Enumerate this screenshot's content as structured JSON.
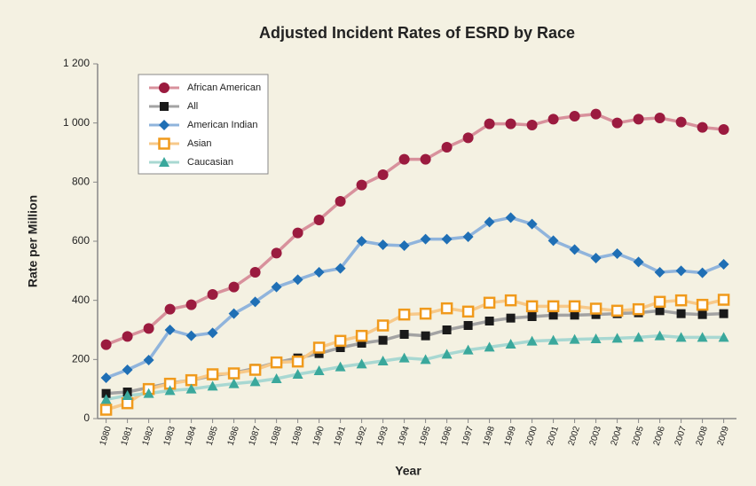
{
  "chart_data": {
    "type": "line",
    "title": "Adjusted Incident Rates of ESRD by Race",
    "x_label": "Year",
    "y_label": "Rate per Million",
    "x": [
      1980,
      1981,
      1982,
      1983,
      1984,
      1985,
      1986,
      1987,
      1988,
      1989,
      1990,
      1991,
      1992,
      1993,
      1994,
      1995,
      1996,
      1997,
      1998,
      1999,
      2000,
      2001,
      2002,
      2003,
      2004,
      2005,
      2006,
      2007,
      2008,
      2009
    ],
    "xlim": [
      1979.6,
      2009.6
    ],
    "xticks": [
      1980,
      1981,
      1982,
      1983,
      1984,
      1985,
      1986,
      1987,
      1988,
      1989,
      1990,
      1991,
      1992,
      1993,
      1994,
      1995,
      1996,
      1997,
      1998,
      1999,
      2000,
      2001,
      2002,
      2003,
      2004,
      2005,
      2006,
      2007,
      2008,
      2009
    ],
    "ylim": [
      0,
      1200
    ],
    "yticks": [
      0,
      200,
      400,
      600,
      800,
      {
        "value": 1000,
        "label": "1 000"
      },
      {
        "value": 1200,
        "label": "1 200"
      }
    ],
    "grid": false,
    "legend": "upper left",
    "series": [
      {
        "name": "African American",
        "color": "#9b1b3f",
        "line_color": "#d8919c",
        "marker": "circle",
        "values": [
          250,
          278,
          305,
          370,
          385,
          420,
          445,
          495,
          560,
          628,
          672,
          735,
          790,
          825,
          877,
          877,
          918,
          950,
          997,
          997,
          993,
          1013,
          1023,
          1030,
          1000,
          1013,
          1017,
          1003,
          985,
          978
        ]
      },
      {
        "name": "All",
        "color": "#1a1a1a",
        "line_color": "#a3a3a3",
        "marker": "square",
        "values": [
          85,
          90,
          105,
          120,
          130,
          145,
          155,
          170,
          190,
          205,
          220,
          240,
          255,
          265,
          285,
          280,
          300,
          315,
          330,
          340,
          345,
          350,
          350,
          352,
          355,
          358,
          365,
          355,
          352,
          355
        ]
      },
      {
        "name": "American Indian",
        "color": "#1f6fb5",
        "line_color": "#90b4dc",
        "marker": "diamond",
        "values": [
          138,
          165,
          198,
          300,
          280,
          290,
          355,
          395,
          445,
          470,
          495,
          508,
          600,
          588,
          585,
          607,
          607,
          615,
          665,
          680,
          658,
          602,
          572,
          543,
          558,
          530,
          495,
          500,
          493,
          522
        ]
      },
      {
        "name": "Asian",
        "color": "#f09a1c",
        "line_color": "#f7c98a",
        "marker": "open-square",
        "values": [
          30,
          52,
          100,
          118,
          130,
          150,
          153,
          165,
          190,
          193,
          240,
          263,
          280,
          315,
          352,
          355,
          373,
          362,
          392,
          400,
          380,
          380,
          380,
          372,
          365,
          370,
          395,
          400,
          385,
          402
        ]
      },
      {
        "name": "Caucasian",
        "color": "#3aa89c",
        "line_color": "#a8d8d2",
        "marker": "triangle",
        "values": [
          65,
          78,
          85,
          95,
          100,
          110,
          118,
          125,
          135,
          150,
          162,
          175,
          185,
          195,
          205,
          200,
          218,
          232,
          242,
          252,
          262,
          265,
          268,
          270,
          272,
          275,
          280,
          275,
          275,
          275
        ]
      }
    ]
  }
}
